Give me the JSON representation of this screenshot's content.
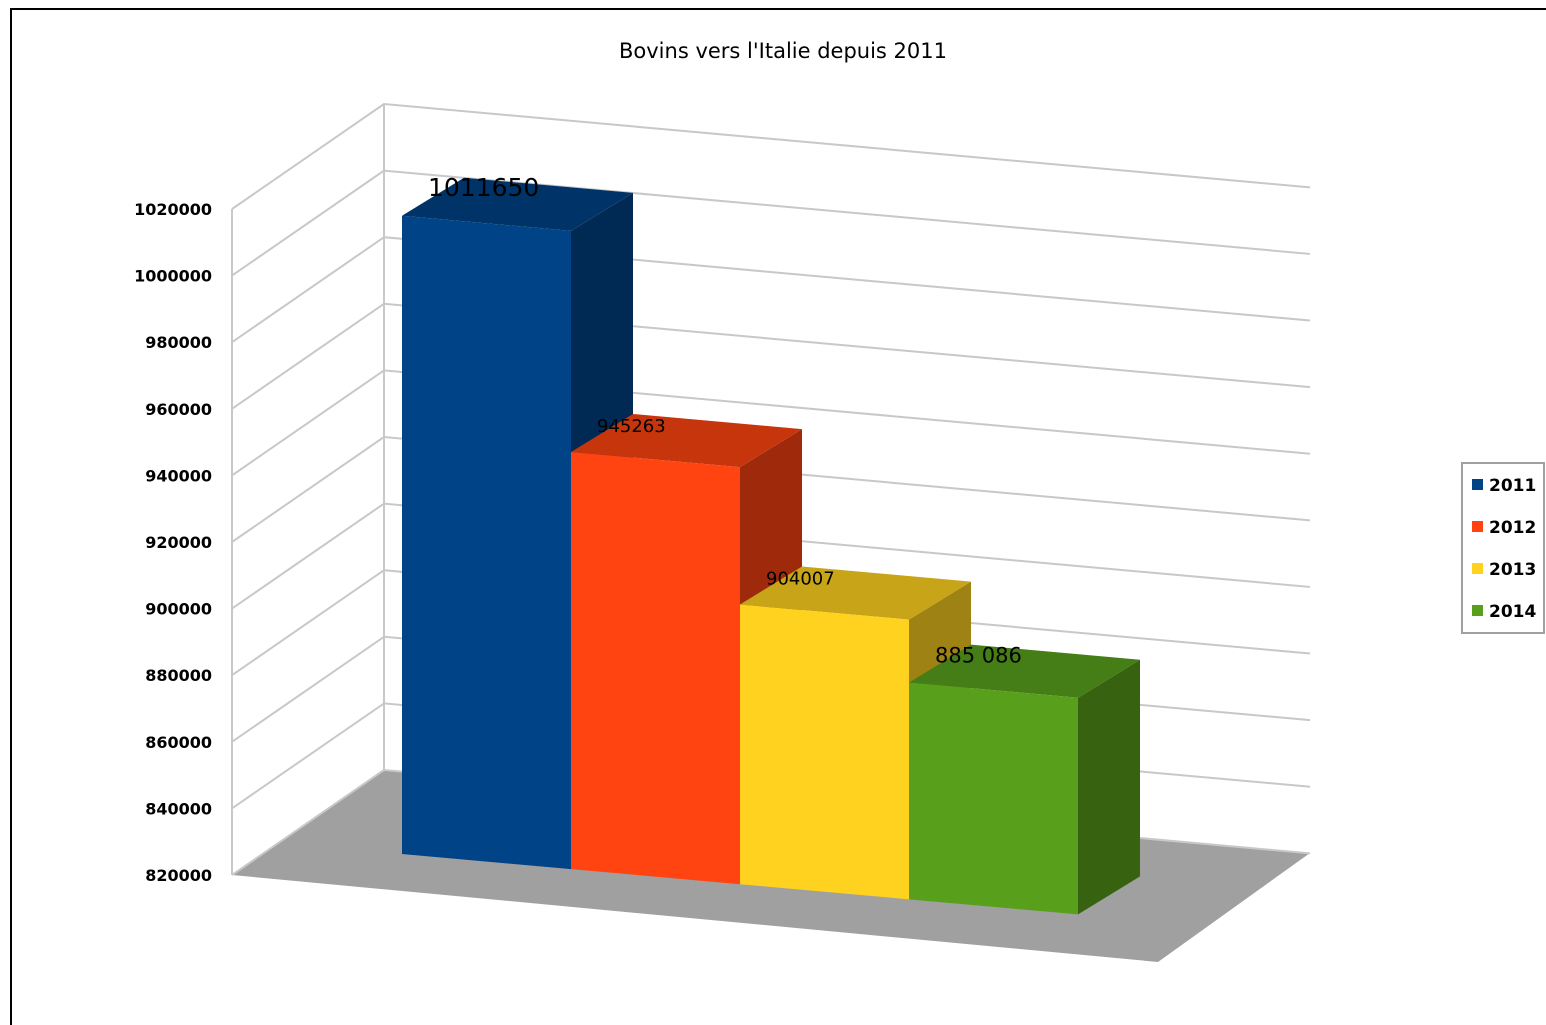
{
  "chart_data": {
    "type": "bar",
    "title": "Bovins vers l'Italie depuis 2011",
    "categories": [
      "2011",
      "2012",
      "2013",
      "2014"
    ],
    "values": [
      1011650,
      945263,
      904007,
      885086
    ],
    "data_labels": [
      "1011650",
      "945263",
      "904007",
      "885 086"
    ],
    "colors": [
      "#004386",
      "#ff4411",
      "#ffd21f",
      "#58a01c"
    ],
    "ylim": [
      820000,
      1020000
    ],
    "yticks": [
      "820000",
      "840000",
      "860000",
      "880000",
      "900000",
      "920000",
      "940000",
      "960000",
      "980000",
      "1000000",
      "1020000"
    ],
    "grid": true,
    "legend_position": "right",
    "style": "3d-column"
  }
}
